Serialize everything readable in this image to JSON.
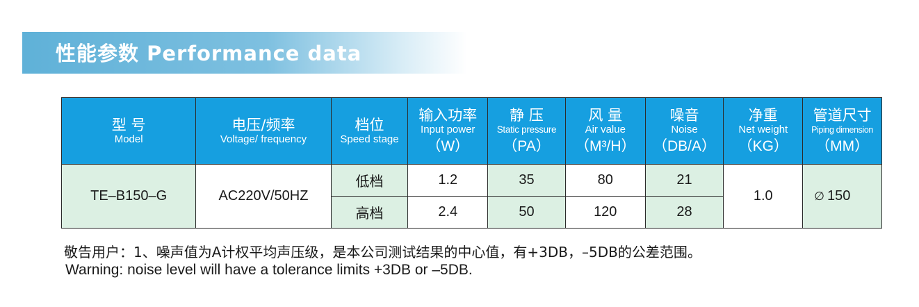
{
  "banner": {
    "title": "性能参数 Performance data"
  },
  "table": {
    "headers": [
      {
        "cn": "型 号",
        "en": "Model",
        "unit": ""
      },
      {
        "cn": "电压/频率",
        "en": "Voltage/ frequency",
        "unit": ""
      },
      {
        "cn": "档位",
        "en": "Speed stage",
        "unit": ""
      },
      {
        "cn": "输入功率",
        "en": "Input power",
        "unit": "（W）"
      },
      {
        "cn": "静 压",
        "en": "Static pressure",
        "unit": "（PA）"
      },
      {
        "cn": "风 量",
        "en": "Air value",
        "unit": "（M³/H）"
      },
      {
        "cn": "噪音",
        "en": "Noise",
        "unit": "（DB/A）"
      },
      {
        "cn": "净重",
        "en": "Net weight",
        "unit": "（KG）"
      },
      {
        "cn": "管道尺寸",
        "en": "Piping dimension",
        "unit": "（MM）"
      }
    ],
    "model": "TE–B150–G",
    "voltage": "AC220V/50HZ",
    "rows": [
      {
        "stage": "低档",
        "power": "1.2",
        "pressure": "35",
        "air": "80",
        "noise": "21"
      },
      {
        "stage": "高档",
        "power": "2.4",
        "pressure": "50",
        "air": "120",
        "noise": "28"
      }
    ],
    "weight": "1.0",
    "pipe_symbol": "∅",
    "pipe": "150"
  },
  "notes": {
    "cn": "敬告用户：1、噪声值为A计权平均声压级，是本公司测试结果的中心值，有+3DB，–5DB的公差范围。",
    "en": "Warning: noise level will have a tolerance limits +3DB or –5DB."
  },
  "colors": {
    "header_bg": "#169fe0",
    "cell_green": "#dcf0e3",
    "banner": "#5fb1d8"
  }
}
